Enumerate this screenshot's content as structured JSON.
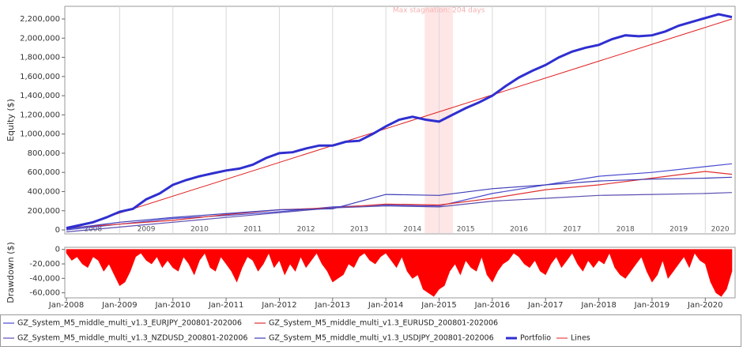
{
  "chart_data": [
    {
      "type": "line",
      "ylabel": "Equity ($)",
      "annotation": "Max stagnation: 204 days",
      "stagnation": [
        2014.73,
        2015.26
      ],
      "xlim": [
        2007.97,
        2020.56
      ],
      "ylim": [
        -41000,
        2332000
      ],
      "yticks": [
        0,
        {
          "value": 200000,
          "label": "200,000"
        },
        {
          "value": 400000,
          "label": "400,000"
        },
        {
          "value": 600000,
          "label": "600,000"
        },
        {
          "value": 800000,
          "label": "800,000"
        },
        {
          "value": 1000000,
          "label": "1,000,000"
        },
        {
          "value": 1200000,
          "label": "1,200,000"
        },
        {
          "value": 1400000,
          "label": "1,400,000"
        },
        {
          "value": 1600000,
          "label": "1,600,000"
        },
        {
          "value": 1800000,
          "label": "1,800,000"
        },
        {
          "value": 2000000,
          "label": "2,000,000"
        },
        {
          "value": 2200000,
          "label": "2,200,000"
        }
      ],
      "xticks": [
        {
          "value": 2008.5,
          "label": "2008"
        },
        {
          "value": 2009.5,
          "label": "2009"
        },
        {
          "value": 2010.5,
          "label": "2010"
        },
        {
          "value": 2011.5,
          "label": "2011"
        },
        {
          "value": 2012.5,
          "label": "2012"
        },
        {
          "value": 2013.5,
          "label": "2013"
        },
        {
          "value": 2014.5,
          "label": "2014"
        },
        {
          "value": 2015.5,
          "label": "2015"
        },
        {
          "value": 2016.5,
          "label": "2016"
        },
        {
          "value": 2017.5,
          "label": "2017"
        },
        {
          "value": 2018.5,
          "label": "2018"
        },
        {
          "value": 2019.5,
          "label": "2019"
        },
        {
          "value": 2020.28,
          "label": "2020"
        }
      ],
      "xgrid": [
        2009,
        2010,
        2011,
        2012,
        2013,
        2014,
        2015,
        2016,
        2017,
        2018,
        2019,
        2020
      ],
      "series": [
        {
          "name": "GZ_System_M5_middle_multi_v1.3_EURJPY_200801-202006",
          "color": "#4a4ad0",
          "width": 1.2,
          "x": [
            2008,
            2009,
            2010,
            2011,
            2012,
            2013,
            2014,
            2015,
            2016,
            2017,
            2018,
            2019,
            2020,
            2020.5
          ],
          "values": [
            0,
            60000,
            120000,
            150000,
            190000,
            240000,
            260000,
            250000,
            380000,
            470000,
            560000,
            600000,
            660000,
            690000
          ]
        },
        {
          "name": "GZ_System_M5_middle_multi_v1.3_EURUSD_200801-202006",
          "color": "#e03030",
          "width": 1.2,
          "x": [
            2008,
            2009,
            2010,
            2011,
            2012,
            2013,
            2014,
            2015,
            2016,
            2017,
            2018,
            2019,
            2020,
            2020.5
          ],
          "values": [
            20000,
            60000,
            100000,
            160000,
            210000,
            230000,
            270000,
            260000,
            330000,
            420000,
            470000,
            540000,
            610000,
            580000
          ]
        },
        {
          "name": "GZ_System_M5_middle_multi_v1.3_NZDUSD_200801-202006",
          "color": "#5a4fb0",
          "width": 1.2,
          "x": [
            2008,
            2009,
            2010,
            2011,
            2012,
            2013,
            2014,
            2015,
            2016,
            2017,
            2018,
            2019,
            2020,
            2020.5
          ],
          "values": [
            -20000,
            30000,
            80000,
            130000,
            180000,
            230000,
            250000,
            240000,
            300000,
            330000,
            360000,
            370000,
            380000,
            390000
          ]
        },
        {
          "name": "GZ_System_M5_middle_multi_v1.3_USDJPY_200801-202006",
          "color": "#3c3cb8",
          "width": 1.2,
          "x": [
            2008,
            2009,
            2010,
            2011,
            2012,
            2013,
            2014,
            2015,
            2016,
            2017,
            2018,
            2019,
            2020,
            2020.5
          ],
          "values": [
            10000,
            80000,
            130000,
            170000,
            210000,
            220000,
            370000,
            360000,
            430000,
            470000,
            510000,
            530000,
            540000,
            550000
          ]
        },
        {
          "name": "Portfolio",
          "color": "#2f2fd0",
          "width": 3,
          "x": [
            2008,
            2008.25,
            2008.5,
            2008.75,
            2009,
            2009.25,
            2009.5,
            2009.75,
            2010,
            2010.25,
            2010.5,
            2010.75,
            2011,
            2011.25,
            2011.5,
            2011.75,
            2012,
            2012.25,
            2012.5,
            2012.75,
            2013,
            2013.25,
            2013.5,
            2013.75,
            2014,
            2014.25,
            2014.5,
            2014.75,
            2015,
            2015.25,
            2015.5,
            2015.75,
            2016,
            2016.25,
            2016.5,
            2016.75,
            2017,
            2017.25,
            2017.5,
            2017.75,
            2018,
            2018.25,
            2018.5,
            2018.75,
            2019,
            2019.25,
            2019.5,
            2019.75,
            2020,
            2020.25,
            2020.5
          ],
          "values": [
            20000,
            50000,
            80000,
            130000,
            190000,
            220000,
            320000,
            380000,
            470000,
            520000,
            560000,
            590000,
            620000,
            640000,
            680000,
            750000,
            800000,
            810000,
            850000,
            880000,
            880000,
            920000,
            930000,
            1000000,
            1080000,
            1150000,
            1180000,
            1150000,
            1130000,
            1200000,
            1270000,
            1330000,
            1400000,
            1500000,
            1590000,
            1660000,
            1720000,
            1800000,
            1860000,
            1900000,
            1930000,
            1990000,
            2030000,
            2020000,
            2030000,
            2070000,
            2130000,
            2170000,
            2210000,
            2250000,
            2220000
          ]
        },
        {
          "name": "Lines",
          "color": "#e02020",
          "width": 1,
          "x": [
            2008,
            2020.5
          ],
          "values": [
            0,
            2200000
          ]
        }
      ]
    },
    {
      "type": "area",
      "ylabel": "Drawdown ($)",
      "color": "#ff0000",
      "xlim": [
        2007.97,
        2020.56
      ],
      "ylim": [
        -67000,
        3000
      ],
      "yticks": [
        0,
        {
          "value": -20000,
          "label": "-20,000"
        },
        {
          "value": -40000,
          "label": "-40,000"
        },
        {
          "value": -60000,
          "label": "-60,000"
        }
      ],
      "xticks": [
        {
          "value": 2008,
          "label": "Jan-2008"
        },
        {
          "value": 2009,
          "label": "Jan-2009"
        },
        {
          "value": 2010,
          "label": "Jan-2010"
        },
        {
          "value": 2011,
          "label": "Jan-2011"
        },
        {
          "value": 2012,
          "label": "Jan-2012"
        },
        {
          "value": 2013,
          "label": "Jan-2013"
        },
        {
          "value": 2014,
          "label": "Jan-2014"
        },
        {
          "value": 2015,
          "label": "Jan-2015"
        },
        {
          "value": 2016,
          "label": "Jan-2016"
        },
        {
          "value": 2017,
          "label": "Jan-2017"
        },
        {
          "value": 2018,
          "label": "Jan-2018"
        },
        {
          "value": 2019,
          "label": "Jan-2019"
        },
        {
          "value": 2020,
          "label": "Jan-2020"
        }
      ],
      "x": [
        2008,
        2008.1,
        2008.2,
        2008.3,
        2008.4,
        2008.5,
        2008.6,
        2008.7,
        2008.8,
        2008.9,
        2009,
        2009.1,
        2009.2,
        2009.3,
        2009.4,
        2009.5,
        2009.6,
        2009.7,
        2009.8,
        2009.9,
        2010,
        2010.1,
        2010.2,
        2010.3,
        2010.4,
        2010.5,
        2010.6,
        2010.7,
        2010.8,
        2010.9,
        2011,
        2011.1,
        2011.2,
        2011.3,
        2011.4,
        2011.5,
        2011.6,
        2011.7,
        2011.8,
        2011.9,
        2012,
        2012.1,
        2012.2,
        2012.3,
        2012.4,
        2012.5,
        2012.6,
        2012.7,
        2012.8,
        2012.9,
        2013,
        2013.1,
        2013.2,
        2013.3,
        2013.4,
        2013.5,
        2013.6,
        2013.7,
        2013.8,
        2013.9,
        2014,
        2014.1,
        2014.2,
        2014.3,
        2014.4,
        2014.5,
        2014.6,
        2014.7,
        2014.8,
        2014.9,
        2015,
        2015.1,
        2015.2,
        2015.3,
        2015.4,
        2015.5,
        2015.6,
        2015.7,
        2015.8,
        2015.9,
        2016,
        2016.1,
        2016.2,
        2016.3,
        2016.4,
        2016.5,
        2016.6,
        2016.7,
        2016.8,
        2016.9,
        2017,
        2017.1,
        2017.2,
        2017.3,
        2017.4,
        2017.5,
        2017.6,
        2017.7,
        2017.8,
        2017.9,
        2018,
        2018.1,
        2018.2,
        2018.3,
        2018.4,
        2018.5,
        2018.6,
        2018.7,
        2018.8,
        2018.9,
        2019,
        2019.1,
        2019.2,
        2019.3,
        2019.4,
        2019.5,
        2019.6,
        2019.7,
        2019.8,
        2019.9,
        2020,
        2020.1,
        2020.2,
        2020.3,
        2020.4,
        2020.5
      ],
      "values": [
        -5000,
        -15000,
        -10000,
        -20000,
        -25000,
        -10000,
        -15000,
        -30000,
        -20000,
        -35000,
        -50000,
        -45000,
        -30000,
        -10000,
        -5000,
        -15000,
        -20000,
        -10000,
        -25000,
        -15000,
        -25000,
        -30000,
        -10000,
        -20000,
        -35000,
        -15000,
        -5000,
        -25000,
        -30000,
        -10000,
        -20000,
        -30000,
        -45000,
        -25000,
        -10000,
        -15000,
        -30000,
        -20000,
        -5000,
        -25000,
        -15000,
        -35000,
        -20000,
        -30000,
        -10000,
        -25000,
        -15000,
        -5000,
        -20000,
        -30000,
        -45000,
        -40000,
        -35000,
        -20000,
        -25000,
        -10000,
        -5000,
        -15000,
        -20000,
        -10000,
        -5000,
        -15000,
        -25000,
        -10000,
        -30000,
        -40000,
        -35000,
        -55000,
        -60000,
        -65000,
        -55000,
        -50000,
        -30000,
        -20000,
        -35000,
        -15000,
        -25000,
        -30000,
        -10000,
        -35000,
        -45000,
        -30000,
        -20000,
        -15000,
        -5000,
        -10000,
        -20000,
        -25000,
        -15000,
        -30000,
        -35000,
        -20000,
        -10000,
        -25000,
        -15000,
        -5000,
        -20000,
        -30000,
        -15000,
        -25000,
        -15000,
        -20000,
        -5000,
        -25000,
        -35000,
        -40000,
        -30000,
        -20000,
        -10000,
        -30000,
        -45000,
        -35000,
        -15000,
        -40000,
        -30000,
        -20000,
        -10000,
        -25000,
        -5000,
        -15000,
        -20000,
        -45000,
        -60000,
        -65000,
        -55000,
        -30000
      ]
    }
  ]
}
